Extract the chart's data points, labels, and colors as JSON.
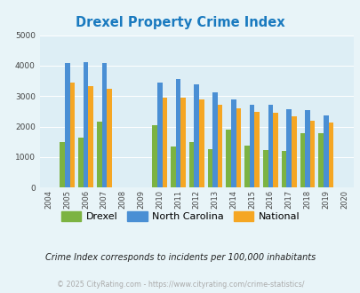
{
  "title": "Drexel Property Crime Index",
  "years": [
    2004,
    2005,
    2006,
    2007,
    2008,
    2009,
    2010,
    2011,
    2012,
    2013,
    2014,
    2015,
    2016,
    2017,
    2018,
    2019,
    2020
  ],
  "drexel": [
    null,
    1480,
    1650,
    2160,
    null,
    null,
    2050,
    1350,
    1480,
    1260,
    1900,
    1380,
    1220,
    1200,
    1790,
    1790,
    null
  ],
  "north_carolina": [
    null,
    4080,
    4100,
    4080,
    null,
    null,
    3450,
    3550,
    3380,
    3110,
    2880,
    2730,
    2730,
    2560,
    2540,
    2380,
    null
  ],
  "national": [
    null,
    3450,
    3340,
    3250,
    null,
    null,
    2950,
    2940,
    2880,
    2730,
    2600,
    2490,
    2450,
    2350,
    2200,
    2140,
    null
  ],
  "drexel_color": "#7cb342",
  "nc_color": "#4a8fd4",
  "national_color": "#f5a623",
  "background_color": "#e8f4f8",
  "plot_bg_color": "#ddeef5",
  "ylim": [
    0,
    5000
  ],
  "yticks": [
    0,
    1000,
    2000,
    3000,
    4000,
    5000
  ],
  "subtitle": "Crime Index corresponds to incidents per 100,000 inhabitants",
  "footer": "© 2025 CityRating.com - https://www.cityrating.com/crime-statistics/",
  "title_color": "#1a7abf",
  "subtitle_color": "#222222",
  "footer_color": "#aaaaaa"
}
